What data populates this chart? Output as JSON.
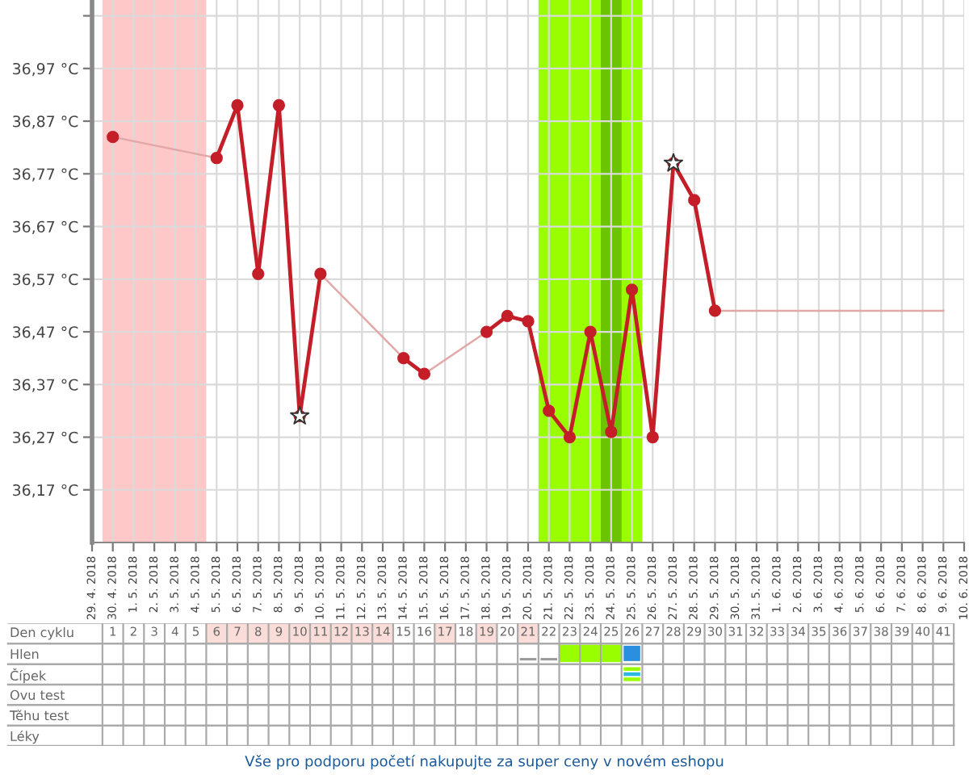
{
  "chart_data": [
    {
      "type": "line",
      "xlim": [
        "2018-04-29",
        "2018-06-10"
      ],
      "xticks": [
        {
          "value": "2018-04-29",
          "label": "29. 4. 2018"
        },
        {
          "value": "2018-04-30",
          "label": "30. 4. 2018"
        },
        {
          "value": "2018-05-01",
          "label": "1. 5. 2018"
        },
        {
          "value": "2018-05-02",
          "label": "2. 5. 2018"
        },
        {
          "value": "2018-05-03",
          "label": "3. 5. 2018"
        },
        {
          "value": "2018-05-04",
          "label": "4. 5. 2018"
        },
        {
          "value": "2018-05-05",
          "label": "5. 5. 2018"
        },
        {
          "value": "2018-05-06",
          "label": "6. 5. 2018"
        },
        {
          "value": "2018-05-07",
          "label": "7. 5. 2018"
        },
        {
          "value": "2018-05-08",
          "label": "8. 5. 2018"
        },
        {
          "value": "2018-05-09",
          "label": "9. 5. 2018"
        },
        {
          "value": "2018-05-10",
          "label": "10. 5. 2018"
        },
        {
          "value": "2018-05-11",
          "label": "11. 5. 2018"
        },
        {
          "value": "2018-05-12",
          "label": "12. 5. 2018"
        },
        {
          "value": "2018-05-13",
          "label": "13. 5. 2018"
        },
        {
          "value": "2018-05-14",
          "label": "14. 5. 2018"
        },
        {
          "value": "2018-05-15",
          "label": "15. 5. 2018"
        },
        {
          "value": "2018-05-16",
          "label": "16. 5. 2018"
        },
        {
          "value": "2018-05-17",
          "label": "17. 5. 2018"
        },
        {
          "value": "2018-05-18",
          "label": "18. 5. 2018"
        },
        {
          "value": "2018-05-19",
          "label": "19. 5. 2018"
        },
        {
          "value": "2018-05-20",
          "label": "20. 5. 2018"
        },
        {
          "value": "2018-05-21",
          "label": "21. 5. 2018"
        },
        {
          "value": "2018-05-22",
          "label": "22. 5. 2018"
        },
        {
          "value": "2018-05-23",
          "label": "23. 5. 2018"
        },
        {
          "value": "2018-05-24",
          "label": "24. 5. 2018"
        },
        {
          "value": "2018-05-25",
          "label": "25. 5. 2018"
        },
        {
          "value": "2018-05-26",
          "label": "26. 5. 2018"
        },
        {
          "value": "2018-05-27",
          "label": "27. 5. 2018"
        },
        {
          "value": "2018-05-28",
          "label": "28. 5. 2018"
        },
        {
          "value": "2018-05-29",
          "label": "29. 5. 2018"
        },
        {
          "value": "2018-05-30",
          "label": "30. 5. 2018"
        },
        {
          "value": "2018-05-31",
          "label": "31. 5. 2018"
        },
        {
          "value": "2018-06-01",
          "label": "1. 6. 2018"
        },
        {
          "value": "2018-06-02",
          "label": "2. 6. 2018"
        },
        {
          "value": "2018-06-03",
          "label": "3. 6. 2018"
        },
        {
          "value": "2018-06-04",
          "label": "4. 6. 2018"
        },
        {
          "value": "2018-06-05",
          "label": "5. 6. 2018"
        },
        {
          "value": "2018-06-06",
          "label": "6. 6. 2018"
        },
        {
          "value": "2018-06-07",
          "label": "7. 6. 2018"
        },
        {
          "value": "2018-06-08",
          "label": "8. 6. 2018"
        },
        {
          "value": "2018-06-09",
          "label": "9. 6. 2018"
        },
        {
          "value": "2018-06-10",
          "label": "10. 6. 2018"
        }
      ],
      "ylim": [
        36.07,
        37.1
      ],
      "yticks": [
        {
          "value": 36.17,
          "label": "36,17 °C"
        },
        {
          "value": 36.27,
          "label": "36,27 °C"
        },
        {
          "value": 36.37,
          "label": "36,37 °C"
        },
        {
          "value": 36.47,
          "label": "36,47 °C"
        },
        {
          "value": 36.57,
          "label": "36,57 °C"
        },
        {
          "value": 36.67,
          "label": "36,67 °C"
        },
        {
          "value": 36.77,
          "label": "36,77 °C"
        },
        {
          "value": 36.87,
          "label": "36,87 °C"
        },
        {
          "value": 36.97,
          "label": "36,97 °C"
        },
        {
          "value": 37.07,
          "label": null
        }
      ],
      "grid": true,
      "bands": [
        {
          "axis": "x",
          "from": "2018-04-29T12:00",
          "to": "2018-05-04T12:00",
          "color": "#ffc8c8"
        },
        {
          "axis": "x",
          "from": "2018-05-20T12:00",
          "to": "2018-05-25T12:00",
          "color": "#99ff00"
        },
        {
          "axis": "x",
          "from": "2018-05-23T12:00",
          "to": "2018-05-24T12:00",
          "color": "#6cc400"
        }
      ],
      "series": [
        {
          "type": "line",
          "color": "#e2a8a8",
          "marker": "none",
          "line_style": "solid",
          "x": [
            "2018-04-30",
            "2018-05-05",
            "2018-05-07",
            "2018-05-10",
            "2018-05-14",
            "2018-05-14T12:00",
            "2018-05-15",
            "2018-05-18"
          ],
          "values": [
            36.84,
            36.8,
            null,
            36.58,
            36.42,
            null,
            36.39,
            36.47
          ]
        },
        {
          "type": "line",
          "color": "#e2a8a8",
          "marker": "none",
          "line_style": "solid",
          "x": [
            "2018-05-29",
            "2018-06-09"
          ],
          "values": [
            36.51,
            36.51
          ]
        },
        {
          "type": "line",
          "color": "#c41e28",
          "marker": "circle",
          "line_style": "solid",
          "x": [
            "2018-04-30",
            "2018-05-01",
            "2018-05-02",
            "2018-05-03",
            "2018-05-04",
            "2018-05-05",
            "2018-05-06",
            "2018-05-07",
            "2018-05-08",
            "2018-05-09",
            "2018-05-10",
            "2018-05-11",
            "2018-05-12",
            "2018-05-13",
            "2018-05-14",
            "2018-05-15",
            "2018-05-16",
            "2018-05-17",
            "2018-05-18",
            "2018-05-19",
            "2018-05-20",
            "2018-05-21",
            "2018-05-22",
            "2018-05-23",
            "2018-05-24",
            "2018-05-25",
            "2018-05-26",
            "2018-05-27",
            "2018-05-28",
            "2018-05-29"
          ],
          "values": [
            36.84,
            null,
            null,
            null,
            null,
            36.8,
            36.9,
            36.58,
            36.9,
            36.31,
            36.58,
            null,
            null,
            null,
            36.42,
            36.39,
            null,
            null,
            36.47,
            36.5,
            36.49,
            36.32,
            36.27,
            36.47,
            36.28,
            36.55,
            36.27,
            36.79,
            36.72,
            36.51
          ]
        },
        {
          "type": "scatter",
          "color": "#ffffff",
          "marker": "star",
          "x": [
            "2018-05-09",
            "2018-05-27"
          ],
          "values": [
            36.31,
            36.79
          ]
        }
      ],
      "annotations": [
        "Vše pro podporu početí nakupujte za super ceny v novém eshopu"
      ]
    },
    {
      "type": "heatmap",
      "xlabel": "Den cyklu",
      "categories": [
        "1",
        "2",
        "3",
        "4",
        "5",
        "6",
        "7",
        "8",
        "9",
        "10",
        "11",
        "12",
        "13",
        "14",
        "15",
        "16",
        "17",
        "18",
        "19",
        "20",
        "21",
        "22",
        "23",
        "24",
        "25",
        "26",
        "27",
        "28",
        "29",
        "30",
        "31",
        "32",
        "33",
        "34",
        "35",
        "36",
        "37",
        "38",
        "39",
        "40",
        "41"
      ],
      "y_categories": [
        "Hlen",
        "Čípek",
        "Ovu test",
        "Těhu test",
        "Léky"
      ],
      "cells": [
        [
          null,
          null,
          null,
          null,
          null,
          null,
          null,
          null,
          null,
          null,
          null,
          null,
          null,
          null,
          null,
          null,
          null,
          null,
          null,
          null,
          null,
          null,
          null,
          null,
          null,
          null,
          null,
          null,
          null,
          null,
          null,
          null,
          null,
          null,
          null,
          null,
          null,
          null,
          null,
          null,
          null
        ],
        [
          null,
          null,
          null,
          null,
          null,
          null,
          null,
          null,
          null,
          null,
          null,
          null,
          null,
          null,
          null,
          null,
          null,
          null,
          null,
          null,
          null,
          null,
          null,
          null,
          null,
          null,
          null,
          null,
          null,
          null,
          null,
          null,
          null,
          null,
          null,
          null,
          null,
          null,
          null,
          null,
          null
        ],
        [
          null,
          null,
          null,
          null,
          null,
          null,
          null,
          null,
          null,
          null,
          null,
          null,
          null,
          null,
          null,
          null,
          null,
          null,
          null,
          null,
          null,
          null,
          null,
          null,
          null,
          null,
          null,
          null,
          null,
          null,
          null,
          null,
          null,
          null,
          null,
          null,
          null,
          null,
          null,
          null,
          null
        ],
        [
          null,
          null,
          null,
          null,
          null,
          null,
          null,
          null,
          null,
          null,
          null,
          null,
          null,
          null,
          null,
          null,
          null,
          null,
          null,
          null,
          null,
          null,
          null,
          null,
          null,
          null,
          null,
          null,
          null,
          null,
          null,
          null,
          null,
          null,
          null,
          null,
          null,
          null,
          null,
          null,
          null
        ],
        [
          null,
          null,
          null,
          null,
          null,
          null,
          null,
          null,
          null,
          null,
          null,
          null,
          null,
          null,
          null,
          null,
          null,
          null,
          null,
          null,
          null,
          null,
          null,
          null,
          null,
          null,
          null,
          null,
          null,
          null,
          null,
          null,
          null,
          null,
          null,
          null,
          null,
          null,
          null,
          null,
          null
        ]
      ]
    }
  ]
}
